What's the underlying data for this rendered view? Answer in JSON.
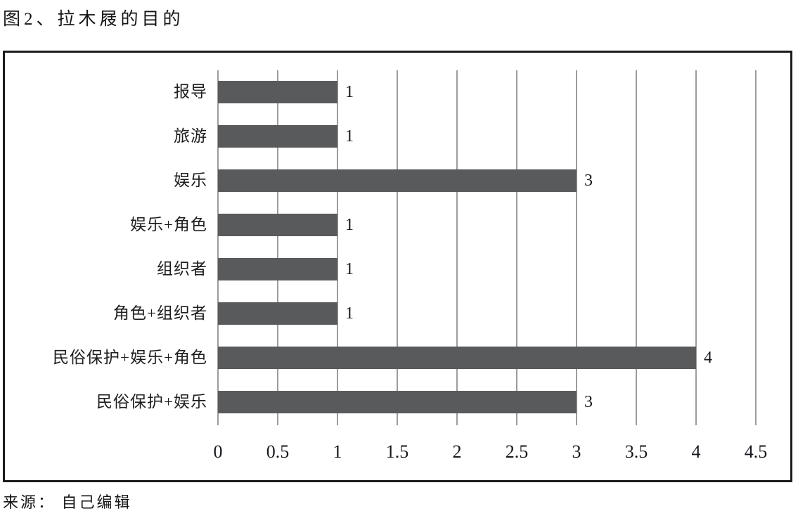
{
  "figure": {
    "title": "图2、拉木屐的目的",
    "source": "来源： 自己编辑"
  },
  "colors": {
    "bar": "#595a5c",
    "grid": "#9c9c9c",
    "frame": "#1c1c1c",
    "text": "#1a1a1a"
  },
  "chart_data": {
    "type": "bar",
    "orientation": "horizontal",
    "title": "图2、拉木屐的目的",
    "categories": [
      "报导",
      "旅游",
      "娱乐",
      "娱乐+角色",
      "组织者",
      "角色+组织者",
      "民俗保护+娱乐+角色",
      "民俗保护+娱乐"
    ],
    "values": [
      1,
      1,
      3,
      1,
      1,
      1,
      4,
      3
    ],
    "data_labels": [
      "1",
      "1",
      "3",
      "1",
      "1",
      "1",
      "4",
      "3"
    ],
    "xlim": [
      0,
      4.5
    ],
    "xticks": [
      0,
      0.5,
      1,
      1.5,
      2,
      2.5,
      3,
      3.5,
      4,
      4.5
    ],
    "xtick_labels": [
      "0",
      "0.5",
      "1",
      "1.5",
      "2",
      "2.5",
      "3",
      "3.5",
      "4",
      "4.5"
    ],
    "grid": true,
    "legend": false,
    "xlabel": "",
    "ylabel": ""
  }
}
